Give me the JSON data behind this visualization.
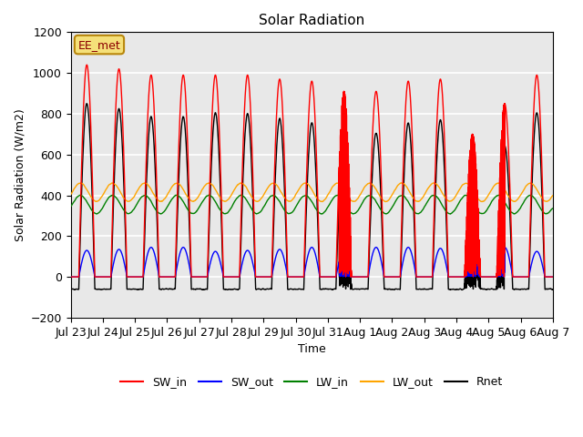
{
  "title": "Solar Radiation",
  "ylabel": "Solar Radiation (W/m2)",
  "xlabel": "Time",
  "ylim": [
    -200,
    1200
  ],
  "annotation_text": "EE_met",
  "annotation_box_color": "#f5e079",
  "annotation_text_color": "#8B0000",
  "annotation_edge_color": "#b8860b",
  "background_color": "#e8e8e8",
  "grid_color": "white",
  "tick_labels": [
    "Jul 23",
    "Jul 24",
    "Jul 25",
    "Jul 26",
    "Jul 27",
    "Jul 28",
    "Jul 29",
    "Jul 30",
    "Jul 31",
    "Aug 1",
    "Aug 2",
    "Aug 3",
    "Aug 4",
    "Aug 5",
    "Aug 6",
    "Aug 7"
  ],
  "series": {
    "SW_in": {
      "color": "red",
      "lw": 1.0
    },
    "SW_out": {
      "color": "blue",
      "lw": 1.0
    },
    "LW_in": {
      "color": "green",
      "lw": 1.0
    },
    "LW_out": {
      "color": "orange",
      "lw": 1.0
    },
    "Rnet": {
      "color": "black",
      "lw": 1.0
    }
  },
  "n_days": 15,
  "points_per_day": 288,
  "day_peaks_SWin": [
    1040,
    1020,
    990,
    990,
    990,
    990,
    970,
    960,
    910,
    910,
    960,
    970,
    700,
    850,
    990
  ],
  "day_peaks_SWout": [
    130,
    135,
    145,
    145,
    125,
    130,
    135,
    145,
    125,
    145,
    145,
    140,
    120,
    145,
    125
  ],
  "LW_in_mean": 355,
  "LW_in_amp": 45,
  "LW_out_mean": 415,
  "LW_out_amp": 45,
  "Rnet_night": -80,
  "yticks": [
    -200,
    0,
    200,
    400,
    600,
    800,
    1000,
    1200
  ]
}
